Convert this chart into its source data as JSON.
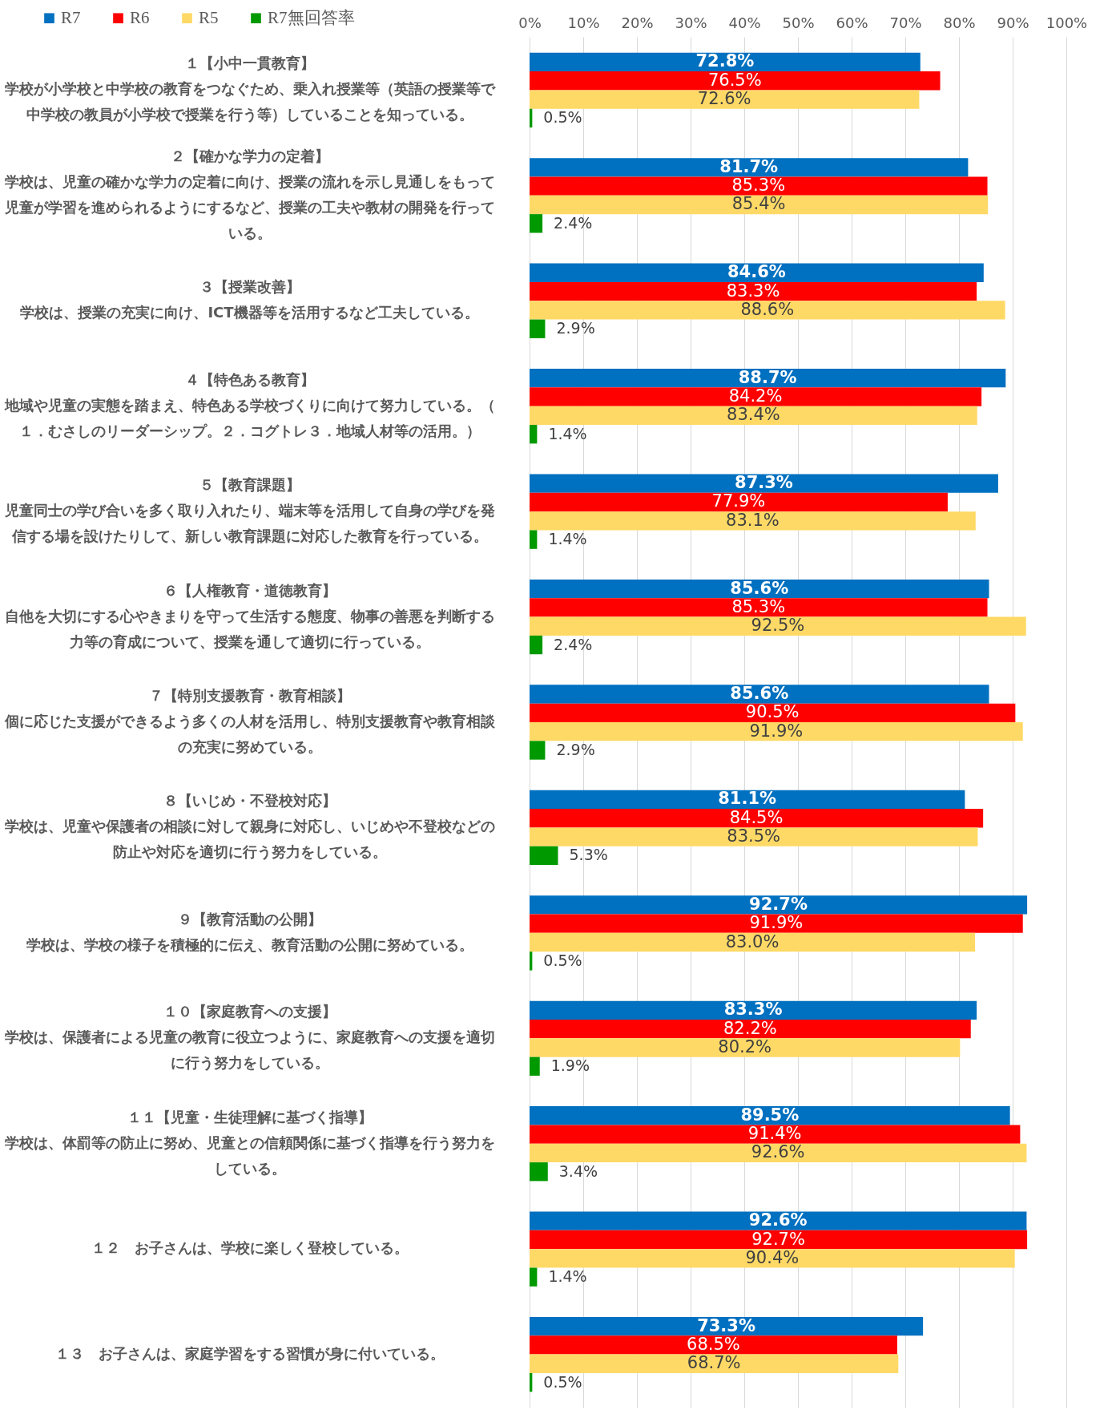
{
  "chart_data": {
    "type": "bar",
    "orientation": "horizontal",
    "categories": [
      "１【小中一貫教育】学校が小学校と中学校の教育をつなぐため、乗入れ授業等（英語の授業等で中学校の教員が小学校で授業を行う等）していることを知っている。",
      "２【確かな学力の定着】学校は、児童の確かな学力の定着に向け、授業の流れを示し見通しをもって児童が学習を進められるようにするなど、授業の工夫や教材の開発を行っている。",
      "３【授業改善】学校は、授業の充実に向け、ICT機器等を活用するなど工夫している。",
      "４【特色ある教育】地域や児童の実態を踏まえ、特色ある学校づくりに向けて努力している。（１．むさしのリーダーシップ。２．コグトレ３．地域人材等の活用。）",
      "５【教育課題】児童同士の学び合いを多く取り入れたり、端末等を活用して自身の学びを発信する場を設けたりして、新しい教育課題に対応した教育を行っている。",
      "６【人権教育・道徳教育】自他を大切にする心やきまりを守って生活する態度、物事の善悪を判断する力等の育成について、授業を通して適切に行っている。",
      "７【特別支援教育・教育相談】個に応じた支援ができるよう多くの人材を活用し、特別支援教育や教育相談の充実に努めている。",
      "８【いじめ・不登校対応】学校は、児童や保護者の相談に対して親身に対応し、いじめや不登校などの防止や対応を適切に行う努力をしている。",
      "９【教育活動の公開】学校は、学校の様子を積極的に伝え、教育活動の公開に努めている。",
      "１０【家庭教育への支援】学校は、保護者による児童の教育に役立つように、家庭教育への支援を適切に行う努力をしている。",
      "１１【児童・生徒理解に基づく指導】学校は、体罰等の防止に努め、児童との信頼関係に基づく指導を行う努力をしている。",
      "１２　お子さんは、学校に楽しく登校している。",
      "１３　お子さんは、家庭学習をする習慣が身に付いている。"
    ],
    "series": [
      {
        "name": "R7",
        "color": "#0070c0",
        "values": [
          72.8,
          81.7,
          84.6,
          88.7,
          87.3,
          85.6,
          85.6,
          81.1,
          92.7,
          83.3,
          89.5,
          92.6,
          73.3
        ],
        "value_labels": [
          "72.8%",
          "81.7%",
          "84.6%",
          "88.7%",
          "87.3%",
          "85.6%",
          "85.6%",
          "81.1%",
          "92.7%",
          "83.3%",
          "89.5%",
          "92.6%",
          "73.3%"
        ]
      },
      {
        "name": "R6",
        "color": "#ff0000",
        "values": [
          76.5,
          85.3,
          83.3,
          84.2,
          77.9,
          85.3,
          90.5,
          84.5,
          91.9,
          82.2,
          91.4,
          92.7,
          68.5
        ],
        "value_labels": [
          "76.5%",
          "85.3%",
          "83.3%",
          "84.2%",
          "77.9%",
          "85.3%",
          "90.5%",
          "84.5%",
          "91.9%",
          "82.2%",
          "91.4%",
          "92.7%",
          "68.5%"
        ]
      },
      {
        "name": "R5",
        "color": "#ffd966",
        "values": [
          72.6,
          85.4,
          88.6,
          83.4,
          83.1,
          92.5,
          91.9,
          83.5,
          83.0,
          80.2,
          92.6,
          90.4,
          68.7
        ],
        "value_labels": [
          "72.6%",
          "85.4%",
          "88.6%",
          "83.4%",
          "83.1%",
          "92.5%",
          "91.9%",
          "83.5%",
          "83.0%",
          "80.2%",
          "92.6%",
          "90.4%",
          "68.7%"
        ]
      },
      {
        "name": "R7無回答率",
        "color": "#009900",
        "values": [
          0.5,
          2.4,
          2.9,
          1.4,
          1.4,
          2.4,
          2.9,
          5.3,
          0.5,
          1.9,
          3.4,
          1.4,
          0.5
        ],
        "value_labels": [
          "0.5%",
          "2.4%",
          "2.9%",
          "1.4%",
          "1.4%",
          "2.4%",
          "2.9%",
          "5.3%",
          "0.5%",
          "1.9%",
          "3.4%",
          "1.4%",
          "0.5%"
        ]
      }
    ],
    "xlim": [
      0,
      100
    ],
    "xticks": [
      {
        "value": 0,
        "label": "0%"
      },
      {
        "value": 10,
        "label": "10%"
      },
      {
        "value": 20,
        "label": "20%"
      },
      {
        "value": 30,
        "label": "30%"
      },
      {
        "value": 40,
        "label": "40%"
      },
      {
        "value": 50,
        "label": "50%"
      },
      {
        "value": 60,
        "label": "60%"
      },
      {
        "value": 70,
        "label": "70%"
      },
      {
        "value": 80,
        "label": "80%"
      },
      {
        "value": 90,
        "label": "90%"
      },
      {
        "value": 100,
        "label": "100%"
      }
    ],
    "grid": "x",
    "legend": "top left"
  }
}
